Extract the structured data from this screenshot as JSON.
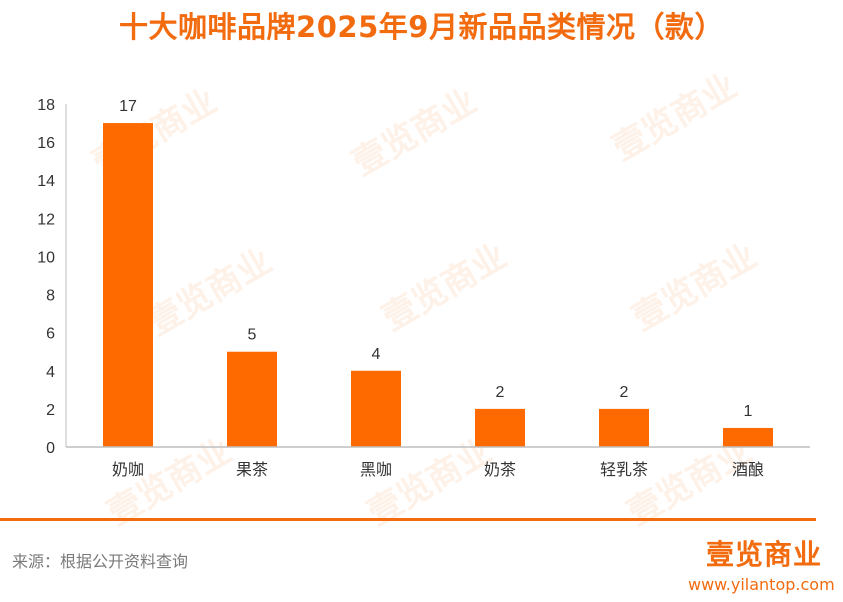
{
  "title": "十大咖啡品牌2025年9月新品品类情况（款）",
  "chart_data": {
    "type": "bar",
    "categories": [
      "奶咖",
      "果茶",
      "黑咖",
      "奶茶",
      "轻乳茶",
      "酒酿"
    ],
    "values": [
      17,
      5,
      4,
      2,
      2,
      1
    ],
    "ylim": [
      0,
      18
    ],
    "yticks": [
      0,
      2,
      4,
      6,
      8,
      10,
      12,
      14,
      16,
      18
    ],
    "grid": false,
    "legend": "none",
    "data_labels": true,
    "bar_color": "#ff6a00"
  },
  "footer": {
    "source": "来源：根据公开资料查询",
    "logo": "壹览商业",
    "url": "www.yilantop.com"
  },
  "watermark": "壹览商业",
  "colors": {
    "accent": "#f26b0f",
    "bar": "#ff6a00",
    "axis": "#bfbfbf",
    "text": "#333333"
  }
}
